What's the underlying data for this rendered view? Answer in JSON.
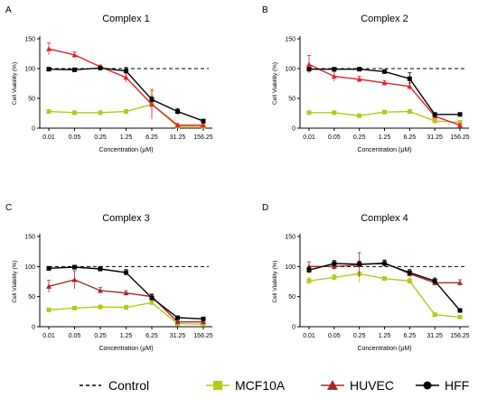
{
  "figure": {
    "legend": {
      "entries": [
        {
          "label": "Control",
          "key": "control"
        },
        {
          "label": "MCF10A",
          "key": "mcf10a"
        },
        {
          "label": "HUVEC",
          "key": "huvec"
        },
        {
          "label": "HFF",
          "key": "hff"
        }
      ]
    },
    "colors": {
      "control": "#000000",
      "mcf10a": "#b5c91a",
      "huvec": "#a52a2a",
      "huvec_c1c2": "#e8202a",
      "hff": "#000000",
      "axis": "#000000"
    }
  },
  "chart_data": [
    {
      "panel": "A",
      "type": "line",
      "title": "Complex 1",
      "xlabel": "Concentration (μM)",
      "ylabel": "Cell Viability (%)",
      "categories": [
        "0.01",
        "0.05",
        "0.25",
        "1.25",
        "6.25",
        "31.25",
        "156.25"
      ],
      "yticks": [
        0,
        50,
        100,
        150
      ],
      "ylim": [
        0,
        150
      ],
      "control_level": 100,
      "huvec_color": "#e8202a",
      "series": [
        {
          "name": "MCF10A",
          "key": "mcf10a",
          "values": [
            28,
            26,
            26,
            28,
            40,
            3,
            3
          ],
          "err": [
            3,
            2,
            2,
            3,
            22,
            2,
            2
          ]
        },
        {
          "name": "HUVEC",
          "key": "huvec",
          "values": [
            133,
            123,
            103,
            85,
            40,
            5,
            5
          ],
          "err": [
            10,
            5,
            3,
            8,
            25,
            3,
            3
          ]
        },
        {
          "name": "HFF",
          "key": "hff",
          "values": [
            99,
            98,
            101,
            96,
            48,
            28,
            12
          ],
          "err": [
            2,
            2,
            2,
            6,
            5,
            5,
            3
          ]
        }
      ]
    },
    {
      "panel": "B",
      "type": "line",
      "title": "Complex 2",
      "xlabel": "Concentration (μM)",
      "ylabel": "Cell Viability (%)",
      "categories": [
        "0.01",
        "0.05",
        "0.25",
        "1.25",
        "6.25",
        "31.25",
        "156.25"
      ],
      "yticks": [
        0,
        50,
        100,
        150
      ],
      "ylim": [
        0,
        150
      ],
      "control_level": 100,
      "huvec_color": "#e8202a",
      "series": [
        {
          "name": "MCF10A",
          "key": "mcf10a",
          "values": [
            26,
            26,
            21,
            27,
            28,
            12,
            10
          ],
          "err": [
            2,
            2,
            3,
            2,
            2,
            2,
            2
          ]
        },
        {
          "name": "HUVEC",
          "key": "huvec",
          "values": [
            107,
            87,
            82,
            76,
            70,
            20,
            5
          ],
          "err": [
            15,
            8,
            5,
            4,
            6,
            3,
            2
          ]
        },
        {
          "name": "HFF",
          "key": "hff",
          "values": [
            99,
            99,
            99,
            95,
            83,
            23,
            23
          ],
          "err": [
            3,
            2,
            2,
            3,
            10,
            3,
            3
          ]
        }
      ]
    },
    {
      "panel": "C",
      "type": "line",
      "title": "Complex 3",
      "xlabel": "Concentration (μM)",
      "ylabel": "Cell Viability (%)",
      "categories": [
        "0.01",
        "0.05",
        "0.25",
        "1.25",
        "6.25",
        "31.25",
        "156.25"
      ],
      "yticks": [
        0,
        50,
        100,
        150
      ],
      "ylim": [
        0,
        150
      ],
      "control_level": 100,
      "huvec_color": "#a52a2a",
      "series": [
        {
          "name": "MCF10A",
          "key": "mcf10a",
          "values": [
            28,
            31,
            33,
            32,
            40,
            5,
            4
          ],
          "err": [
            3,
            3,
            3,
            3,
            3,
            2,
            2
          ]
        },
        {
          "name": "HUVEC",
          "key": "huvec",
          "values": [
            67,
            78,
            60,
            56,
            50,
            8,
            8
          ],
          "err": [
            10,
            15,
            5,
            4,
            5,
            2,
            2
          ]
        },
        {
          "name": "HFF",
          "key": "hff",
          "values": [
            97,
            99,
            96,
            90,
            48,
            15,
            13
          ],
          "err": [
            2,
            2,
            4,
            5,
            5,
            3,
            2
          ]
        }
      ]
    },
    {
      "panel": "D",
      "type": "line",
      "title": "Complex 4",
      "xlabel": "Concentration (μM)",
      "ylabel": "Cell Viability (%)",
      "categories": [
        "0.01",
        "0.05",
        "0.25",
        "1.25",
        "6.25",
        "31.25",
        "156.25"
      ],
      "yticks": [
        0,
        50,
        100,
        150
      ],
      "ylim": [
        0,
        150
      ],
      "control_level": 100,
      "huvec_color": "#a52a2a",
      "series": [
        {
          "name": "MCF10A",
          "key": "mcf10a",
          "values": [
            76,
            82,
            88,
            80,
            76,
            20,
            16
          ],
          "err": [
            5,
            5,
            15,
            3,
            5,
            2,
            2
          ]
        },
        {
          "name": "HUVEC",
          "key": "huvec",
          "values": [
            100,
            100,
            103,
            106,
            88,
            73,
            73
          ],
          "err": [
            8,
            6,
            20,
            5,
            5,
            5,
            5
          ]
        },
        {
          "name": "HFF",
          "key": "hff",
          "values": [
            94,
            105,
            104,
            105,
            90,
            76,
            27
          ],
          "err": [
            5,
            5,
            5,
            5,
            5,
            5,
            3
          ]
        }
      ]
    }
  ]
}
